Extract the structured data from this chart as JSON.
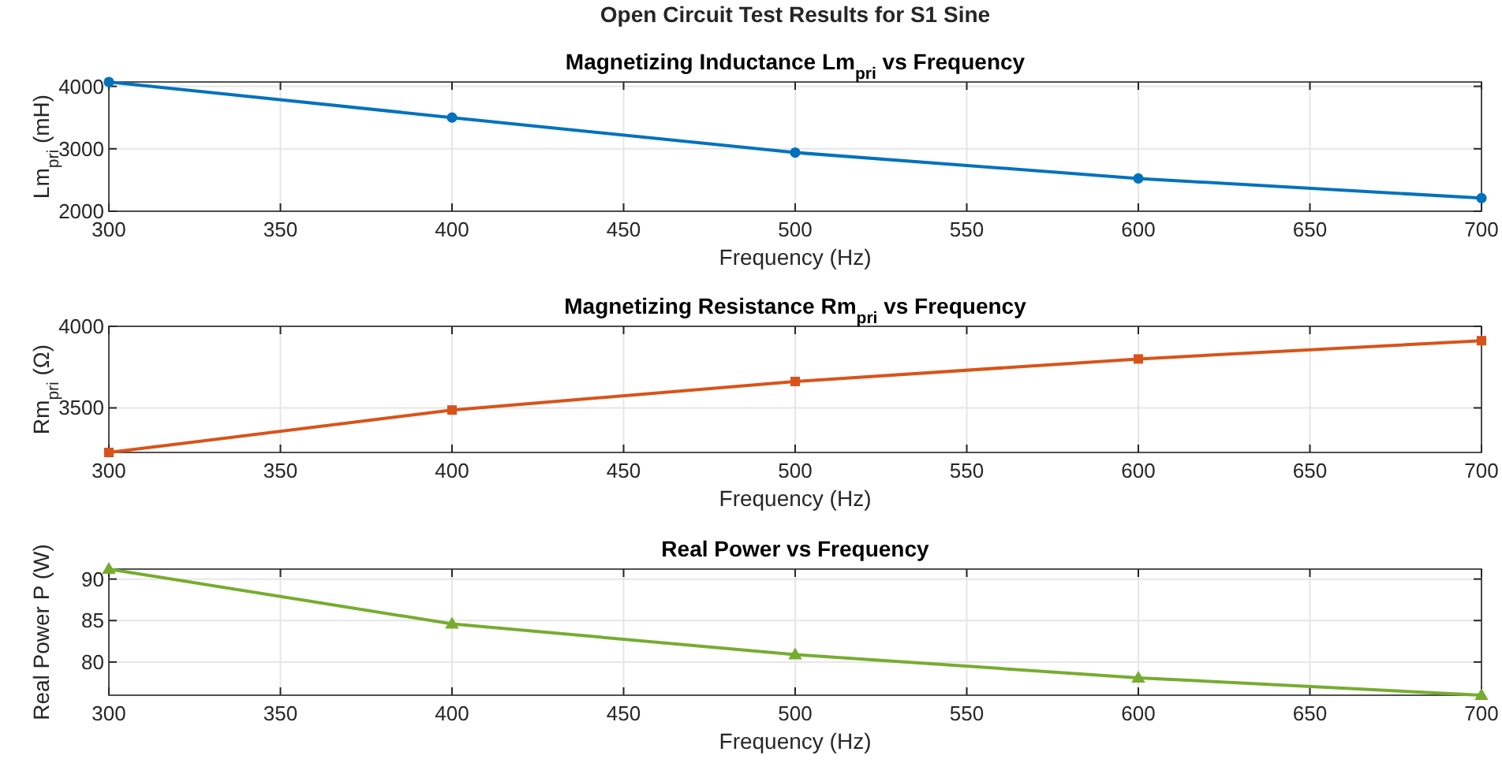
{
  "chart_data": [
    {
      "type": "line",
      "title": "Magnetizing Inductance Lm$_{pri}$ vs Frequency",
      "xlabel": "Frequency (Hz)",
      "ylabel": "Lm$_{pri}$ (mH)",
      "annotations": [
        "Open Circuit Test Results for S1 Sine"
      ],
      "x": [
        300,
        400,
        500,
        600,
        700
      ],
      "series": [
        {
          "color": "#0072bd",
          "values": [
            4070,
            3500,
            2940,
            2525,
            2210
          ]
        }
      ],
      "xlim": [
        300,
        700
      ],
      "xticks": [
        300,
        350,
        400,
        450,
        500,
        550,
        600,
        650,
        700
      ],
      "ylim": [
        2000,
        4070
      ],
      "yticks": [
        2000,
        3000,
        4000
      ],
      "grid": true,
      "marker": "circle"
    },
    {
      "type": "line",
      "title": "Magnetizing Resistance Rm$_{pri}$ vs Frequency",
      "xlabel": "Frequency (Hz)",
      "ylabel": "Rm$_{pri}$ (Ω)",
      "x": [
        300,
        400,
        500,
        600,
        700
      ],
      "series": [
        {
          "color": "#d95319",
          "values": [
            3227,
            3487,
            3662,
            3800,
            3912
          ]
        }
      ],
      "xlim": [
        300,
        700
      ],
      "xticks": [
        300,
        350,
        400,
        450,
        500,
        550,
        600,
        650,
        700
      ],
      "ylim": [
        3227,
        4000
      ],
      "yticks": [
        3500,
        4000
      ],
      "grid": true,
      "marker": "square"
    },
    {
      "type": "line",
      "title": "Real Power vs Frequency",
      "xlabel": "Frequency (Hz)",
      "ylabel": "Real Power P (W)",
      "x": [
        300,
        400,
        500,
        600,
        700
      ],
      "series": [
        {
          "color": "#77ac30",
          "values": [
            91.2,
            84.6,
            80.9,
            78.1,
            76.0
          ]
        }
      ],
      "xlim": [
        300,
        700
      ],
      "xticks": [
        300,
        350,
        400,
        450,
        500,
        550,
        600,
        650,
        700
      ],
      "ylim": [
        76,
        91.2
      ],
      "yticks": [
        80,
        85,
        90
      ],
      "grid": true,
      "marker": "triangle"
    }
  ]
}
